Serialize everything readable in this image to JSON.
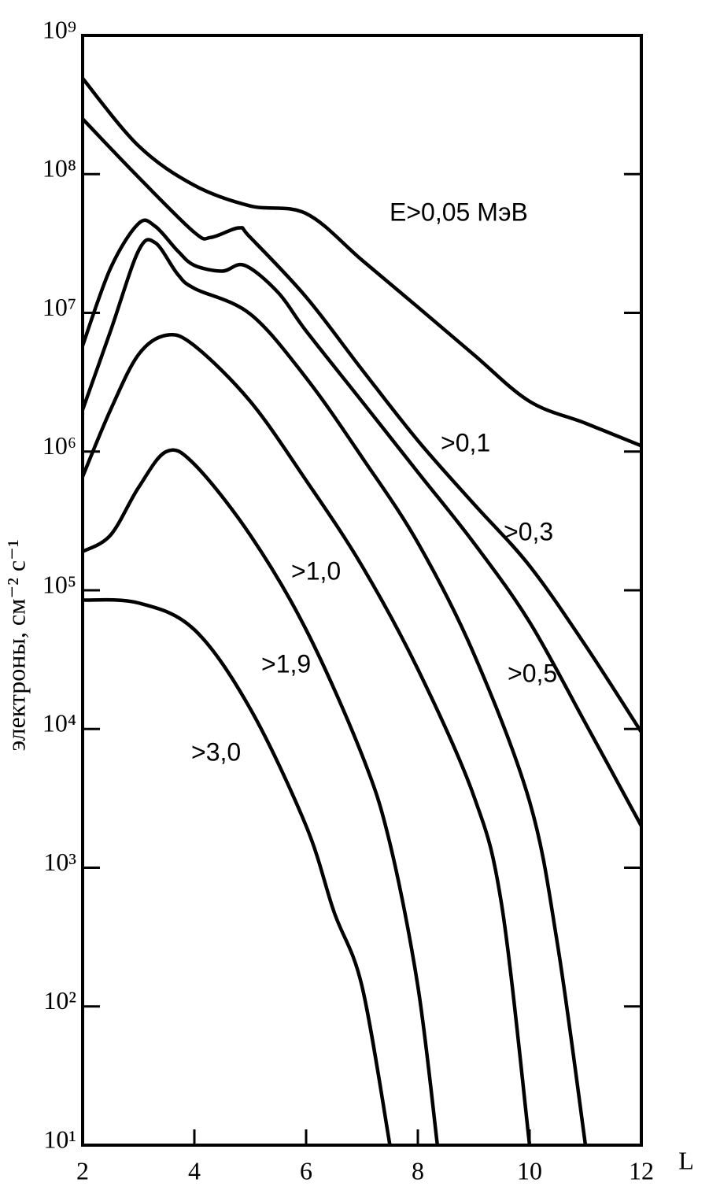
{
  "chart_data": {
    "type": "line",
    "y_label": "электроны, см⁻² с⁻¹",
    "x_label": "L",
    "xlim": [
      2,
      12
    ],
    "xticks": [
      2,
      4,
      6,
      8,
      10,
      12
    ],
    "ylim": [
      10,
      1000000000
    ],
    "log_y": true,
    "yticks": [
      {
        "value": 10,
        "label": "10¹"
      },
      {
        "value": 100,
        "label": "10²"
      },
      {
        "value": 1000,
        "label": "10³"
      },
      {
        "value": 10000,
        "label": "10⁴"
      },
      {
        "value": 100000,
        "label": "10⁵"
      },
      {
        "value": 1000000,
        "label": "10⁶"
      },
      {
        "value": 10000000,
        "label": "10⁷"
      },
      {
        "value": 100000000,
        "label": "10⁸"
      },
      {
        "value": 1000000000,
        "label": "10⁹"
      }
    ],
    "series": [
      {
        "name": "E>0,05 МэВ",
        "color": "#000000",
        "x": [
          2,
          3,
          4,
          5,
          6,
          7,
          8,
          9,
          10,
          11,
          12
        ],
        "values": [
          490000000,
          160000000,
          83000000,
          59000000,
          52000000,
          24000000,
          11000000,
          5000000,
          2300000,
          1600000,
          1100000
        ]
      },
      {
        "name": ">0,1",
        "color": "#000000",
        "x": [
          2,
          3,
          4,
          4.3,
          4.8,
          5,
          6,
          7,
          8,
          9,
          10,
          11,
          12
        ],
        "values": [
          250000000,
          95000000,
          38000000,
          35000000,
          41000000,
          35000000,
          13000000,
          3900000,
          1200000,
          420000,
          150000,
          40000,
          9500
        ]
      },
      {
        "name": ">0,3",
        "color": "#000000",
        "x": [
          2,
          2.5,
          3,
          3.3,
          3.7,
          4,
          4.5,
          4.9,
          5.5,
          6,
          7,
          8,
          9,
          10,
          11,
          12
        ],
        "values": [
          5800000,
          21000000,
          44000000,
          42000000,
          28000000,
          22000000,
          20000000,
          22000000,
          14000000,
          7400000,
          2300000,
          710000,
          220000,
          59000,
          11000,
          2000
        ]
      },
      {
        "name": ">0,5",
        "color": "#000000",
        "x": [
          2,
          2.5,
          3,
          3.3,
          3.7,
          4,
          5,
          6,
          7,
          8,
          9,
          10,
          10.5,
          11
        ],
        "values": [
          2000000,
          7400000,
          28000000,
          32000000,
          19000000,
          15000000,
          9800000,
          3400000,
          910000,
          220000,
          35000,
          3000,
          280,
          10
        ]
      },
      {
        "name": ">1,0",
        "color": "#000000",
        "x": [
          2,
          2.5,
          3,
          3.5,
          4,
          5,
          6,
          7,
          8,
          9,
          9.5,
          10
        ],
        "values": [
          660000,
          2000000,
          5000000,
          6900000,
          5800000,
          2300000,
          620000,
          150000,
          27000,
          3300,
          540,
          10
        ]
      },
      {
        "name": ">1,9",
        "color": "#000000",
        "x": [
          2,
          2.5,
          3,
          3.5,
          4,
          5,
          6,
          7,
          7.5,
          8,
          8.35
        ],
        "values": [
          190000,
          250000,
          550000,
          1000000,
          810000,
          250000,
          52000,
          6500,
          1500,
          140,
          10
        ]
      },
      {
        "name": ">3,0",
        "color": "#000000",
        "x": [
          2,
          3,
          4,
          5,
          6,
          6.5,
          7,
          7.5
        ],
        "values": [
          85000,
          81000,
          52000,
          14000,
          2000,
          480,
          140,
          10
        ]
      }
    ]
  }
}
